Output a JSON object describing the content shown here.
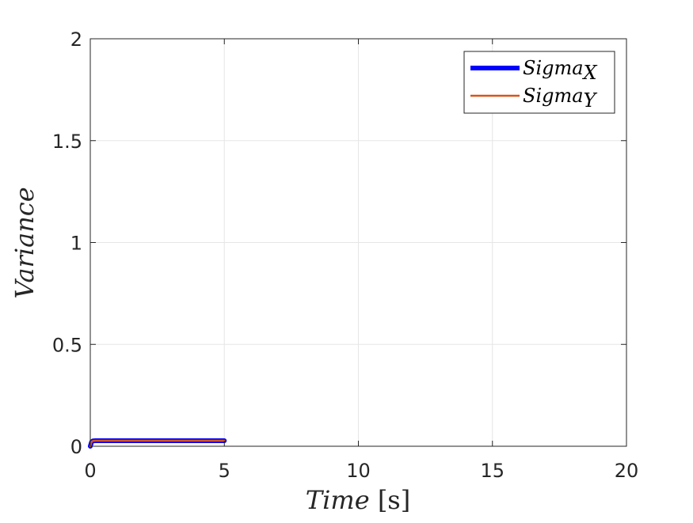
{
  "chart_data": {
    "type": "line",
    "xlabel": "Time [s]",
    "xlabel_main": "Time",
    "xlabel_unit": "[s]",
    "ylabel": "Variance",
    "xlim": [
      0,
      20
    ],
    "ylim": [
      0,
      2
    ],
    "xticks": [
      0,
      5,
      10,
      15,
      20
    ],
    "xtick_labels": [
      "0",
      "5",
      "10",
      "15",
      "20"
    ],
    "yticks": [
      0,
      0.5,
      1,
      1.5,
      2
    ],
    "ytick_labels": [
      "0",
      "0.5",
      "1",
      "1.5",
      "2"
    ],
    "grid": true,
    "legend_position": "top-right",
    "series": [
      {
        "name": "Sigma_X",
        "legend_main": "Sigma",
        "legend_sub": "X",
        "color": "#0000ff",
        "x": [
          0,
          0.05,
          0.1,
          0.2,
          0.5,
          1,
          2,
          3,
          4,
          5
        ],
        "y": [
          0,
          0.022,
          0.026,
          0.027,
          0.027,
          0.027,
          0.027,
          0.027,
          0.027,
          0.027
        ]
      },
      {
        "name": "Sigma_Y",
        "legend_main": "Sigma",
        "legend_sub": "Y",
        "color": "#d95319",
        "x": [
          0,
          0.05,
          0.1,
          0.2,
          0.5,
          1,
          2,
          3,
          4,
          5
        ],
        "y": [
          0,
          0.022,
          0.026,
          0.027,
          0.027,
          0.027,
          0.027,
          0.027,
          0.027,
          0.027
        ]
      }
    ]
  }
}
